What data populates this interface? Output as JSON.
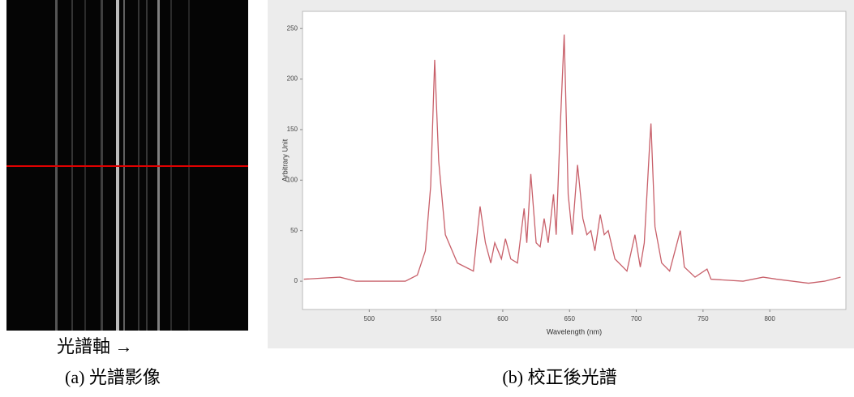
{
  "left_image": {
    "axis_label": "光譜軸 →"
  },
  "captions": [
    "(a) 光譜影像",
    "(b) 校正後光譜"
  ],
  "chart_data": {
    "type": "line",
    "x_label": "Wavelength (nm)",
    "y_label": "Arbitrary Unit",
    "x": [
      451,
      478,
      490,
      527,
      536,
      542,
      546,
      549,
      552,
      557,
      566,
      578,
      583,
      587,
      591,
      594,
      599,
      602,
      606,
      611,
      616,
      618,
      621,
      625,
      628,
      631,
      634,
      638,
      640,
      643,
      646,
      649,
      652,
      656,
      660,
      663,
      666,
      669,
      673,
      676,
      679,
      684,
      693,
      699,
      703,
      706,
      710,
      711,
      714,
      719,
      725,
      733,
      736,
      744,
      753,
      756,
      780,
      795,
      805,
      829,
      841,
      853
    ],
    "series": [
      {
        "color": "#c8606a",
        "values": [
          2,
          4,
          0,
          0,
          6,
          30,
          94,
          219,
          119,
          46,
          18,
          10,
          74,
          38,
          18,
          38,
          22,
          42,
          22,
          18,
          72,
          38,
          106,
          38,
          34,
          62,
          38,
          86,
          46,
          151,
          244,
          86,
          46,
          115,
          62,
          46,
          50,
          30,
          66,
          46,
          50,
          22,
          10,
          46,
          14,
          38,
          135,
          156,
          54,
          18,
          10,
          50,
          14,
          4,
          12,
          2,
          0,
          4,
          2,
          -2,
          0,
          4
        ]
      }
    ],
    "xlim": [
      450,
      857
    ],
    "ylim": [
      -28,
      267
    ],
    "xticks": [
      500,
      550,
      600,
      650,
      700,
      750,
      800
    ],
    "yticks": [
      0,
      50,
      100,
      150,
      200,
      250
    ]
  }
}
